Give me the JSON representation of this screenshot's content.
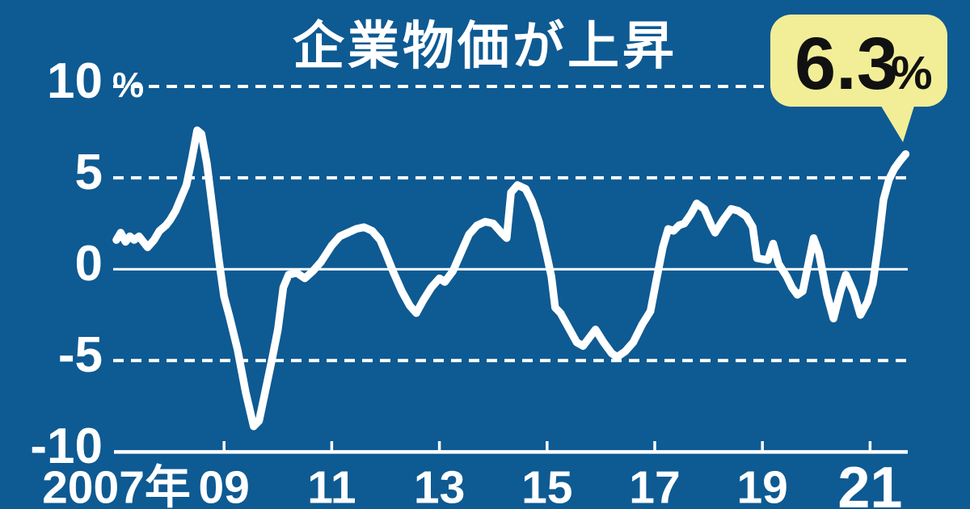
{
  "colors": {
    "background": "#0e5a92",
    "line": "#ffffff",
    "grid": "#ffffff",
    "text": "#ffffff",
    "callout_bg": "#f2ee97",
    "callout_text": "#111111"
  },
  "chart_data": {
    "type": "line",
    "title": "企業物価が上昇",
    "ylabel": "",
    "xlabel": "",
    "ylim": [
      -10,
      10
    ],
    "xlim": [
      2007,
      2021.75
    ],
    "grid": {
      "dashed_values": [
        10,
        5,
        -5
      ],
      "zero_value": 0,
      "baseline_value": -10,
      "legend_position": "none"
    },
    "y_axis": {
      "labels": [
        {
          "text": "10",
          "suffix": "%",
          "value": 10
        },
        {
          "text": "5",
          "value": 5
        },
        {
          "text": "0",
          "value": 0
        },
        {
          "text": "-5",
          "value": -5
        },
        {
          "text": "-10",
          "value": -10
        }
      ]
    },
    "x_axis": {
      "labels": [
        {
          "text": "2007年",
          "year": 2007
        },
        {
          "text": "09",
          "year": 2009
        },
        {
          "text": "11",
          "year": 2011
        },
        {
          "text": "13",
          "year": 2013
        },
        {
          "text": "15",
          "year": 2015
        },
        {
          "text": "17",
          "year": 2017
        },
        {
          "text": "19",
          "year": 2019
        },
        {
          "text": "21",
          "year": 2021,
          "large": true
        }
      ],
      "tick_years": [
        2009,
        2011,
        2013,
        2015,
        2017,
        2019,
        2021
      ]
    },
    "callout": {
      "value": "6.3",
      "suffix": "%",
      "point": [
        2021.66,
        6.3
      ]
    },
    "series": [
      {
        "points": [
          [
            2007.0,
            1.6
          ],
          [
            2007.08,
            2.0
          ],
          [
            2007.17,
            1.5
          ],
          [
            2007.25,
            1.8
          ],
          [
            2007.33,
            1.6
          ],
          [
            2007.42,
            1.8
          ],
          [
            2007.5,
            1.5
          ],
          [
            2007.58,
            1.2
          ],
          [
            2007.7,
            1.6
          ],
          [
            2007.8,
            2.1
          ],
          [
            2007.92,
            2.4
          ],
          [
            2008.0,
            2.7
          ],
          [
            2008.1,
            3.2
          ],
          [
            2008.2,
            3.9
          ],
          [
            2008.3,
            4.6
          ],
          [
            2008.4,
            6.0
          ],
          [
            2008.5,
            7.6
          ],
          [
            2008.58,
            7.4
          ],
          [
            2008.68,
            5.8
          ],
          [
            2008.8,
            3.0
          ],
          [
            2008.9,
            0.6
          ],
          [
            2009.0,
            -1.5
          ],
          [
            2009.1,
            -2.6
          ],
          [
            2009.25,
            -4.4
          ],
          [
            2009.4,
            -6.7
          ],
          [
            2009.55,
            -8.6
          ],
          [
            2009.65,
            -8.3
          ],
          [
            2009.8,
            -6.2
          ],
          [
            2009.9,
            -4.8
          ],
          [
            2010.0,
            -3.3
          ],
          [
            2010.1,
            -1.0
          ],
          [
            2010.2,
            -0.3
          ],
          [
            2010.35,
            -0.2
          ],
          [
            2010.5,
            -0.5
          ],
          [
            2010.65,
            -0.1
          ],
          [
            2010.8,
            0.4
          ],
          [
            2011.0,
            1.3
          ],
          [
            2011.15,
            1.8
          ],
          [
            2011.3,
            2.0
          ],
          [
            2011.45,
            2.2
          ],
          [
            2011.6,
            2.3
          ],
          [
            2011.75,
            2.1
          ],
          [
            2011.9,
            1.6
          ],
          [
            2012.0,
            0.9
          ],
          [
            2012.15,
            -0.2
          ],
          [
            2012.3,
            -1.2
          ],
          [
            2012.45,
            -2.0
          ],
          [
            2012.57,
            -2.4
          ],
          [
            2012.7,
            -1.7
          ],
          [
            2012.85,
            -1.0
          ],
          [
            2013.0,
            -0.5
          ],
          [
            2013.1,
            -0.7
          ],
          [
            2013.25,
            -0.1
          ],
          [
            2013.4,
            0.9
          ],
          [
            2013.55,
            1.9
          ],
          [
            2013.7,
            2.4
          ],
          [
            2013.85,
            2.6
          ],
          [
            2014.0,
            2.5
          ],
          [
            2014.15,
            2.0
          ],
          [
            2014.25,
            1.7
          ],
          [
            2014.33,
            4.2
          ],
          [
            2014.45,
            4.6
          ],
          [
            2014.6,
            4.4
          ],
          [
            2014.72,
            3.7
          ],
          [
            2014.85,
            2.6
          ],
          [
            2015.0,
            0.7
          ],
          [
            2015.08,
            -0.4
          ],
          [
            2015.15,
            -2.1
          ],
          [
            2015.25,
            -2.4
          ],
          [
            2015.4,
            -3.2
          ],
          [
            2015.55,
            -4.0
          ],
          [
            2015.67,
            -4.2
          ],
          [
            2015.9,
            -3.3
          ],
          [
            2016.05,
            -4.0
          ],
          [
            2016.2,
            -4.6
          ],
          [
            2016.3,
            -4.8
          ],
          [
            2016.45,
            -4.5
          ],
          [
            2016.6,
            -4.0
          ],
          [
            2016.77,
            -3.0
          ],
          [
            2016.92,
            -2.3
          ],
          [
            2017.03,
            -0.6
          ],
          [
            2017.15,
            1.2
          ],
          [
            2017.25,
            2.2
          ],
          [
            2017.35,
            2.1
          ],
          [
            2017.45,
            2.4
          ],
          [
            2017.55,
            2.5
          ],
          [
            2017.67,
            3.0
          ],
          [
            2017.78,
            3.6
          ],
          [
            2017.92,
            3.3
          ],
          [
            2018.05,
            2.4
          ],
          [
            2018.12,
            2.0
          ],
          [
            2018.27,
            2.7
          ],
          [
            2018.42,
            3.3
          ],
          [
            2018.55,
            3.2
          ],
          [
            2018.7,
            2.9
          ],
          [
            2018.82,
            2.3
          ],
          [
            2018.9,
            0.6
          ],
          [
            2019.1,
            0.5
          ],
          [
            2019.2,
            1.4
          ],
          [
            2019.3,
            0.3
          ],
          [
            2019.45,
            -0.4
          ],
          [
            2019.55,
            -1.0
          ],
          [
            2019.65,
            -1.4
          ],
          [
            2019.75,
            -1.2
          ],
          [
            2019.95,
            1.7
          ],
          [
            2020.05,
            0.9
          ],
          [
            2020.2,
            -1.4
          ],
          [
            2020.32,
            -2.7
          ],
          [
            2020.45,
            -1.2
          ],
          [
            2020.55,
            -0.3
          ],
          [
            2020.7,
            -1.3
          ],
          [
            2020.82,
            -2.5
          ],
          [
            2020.95,
            -1.8
          ],
          [
            2021.05,
            -0.8
          ],
          [
            2021.15,
            1.3
          ],
          [
            2021.25,
            3.8
          ],
          [
            2021.35,
            4.9
          ],
          [
            2021.45,
            5.5
          ],
          [
            2021.55,
            5.9
          ],
          [
            2021.66,
            6.3
          ]
        ]
      }
    ]
  }
}
